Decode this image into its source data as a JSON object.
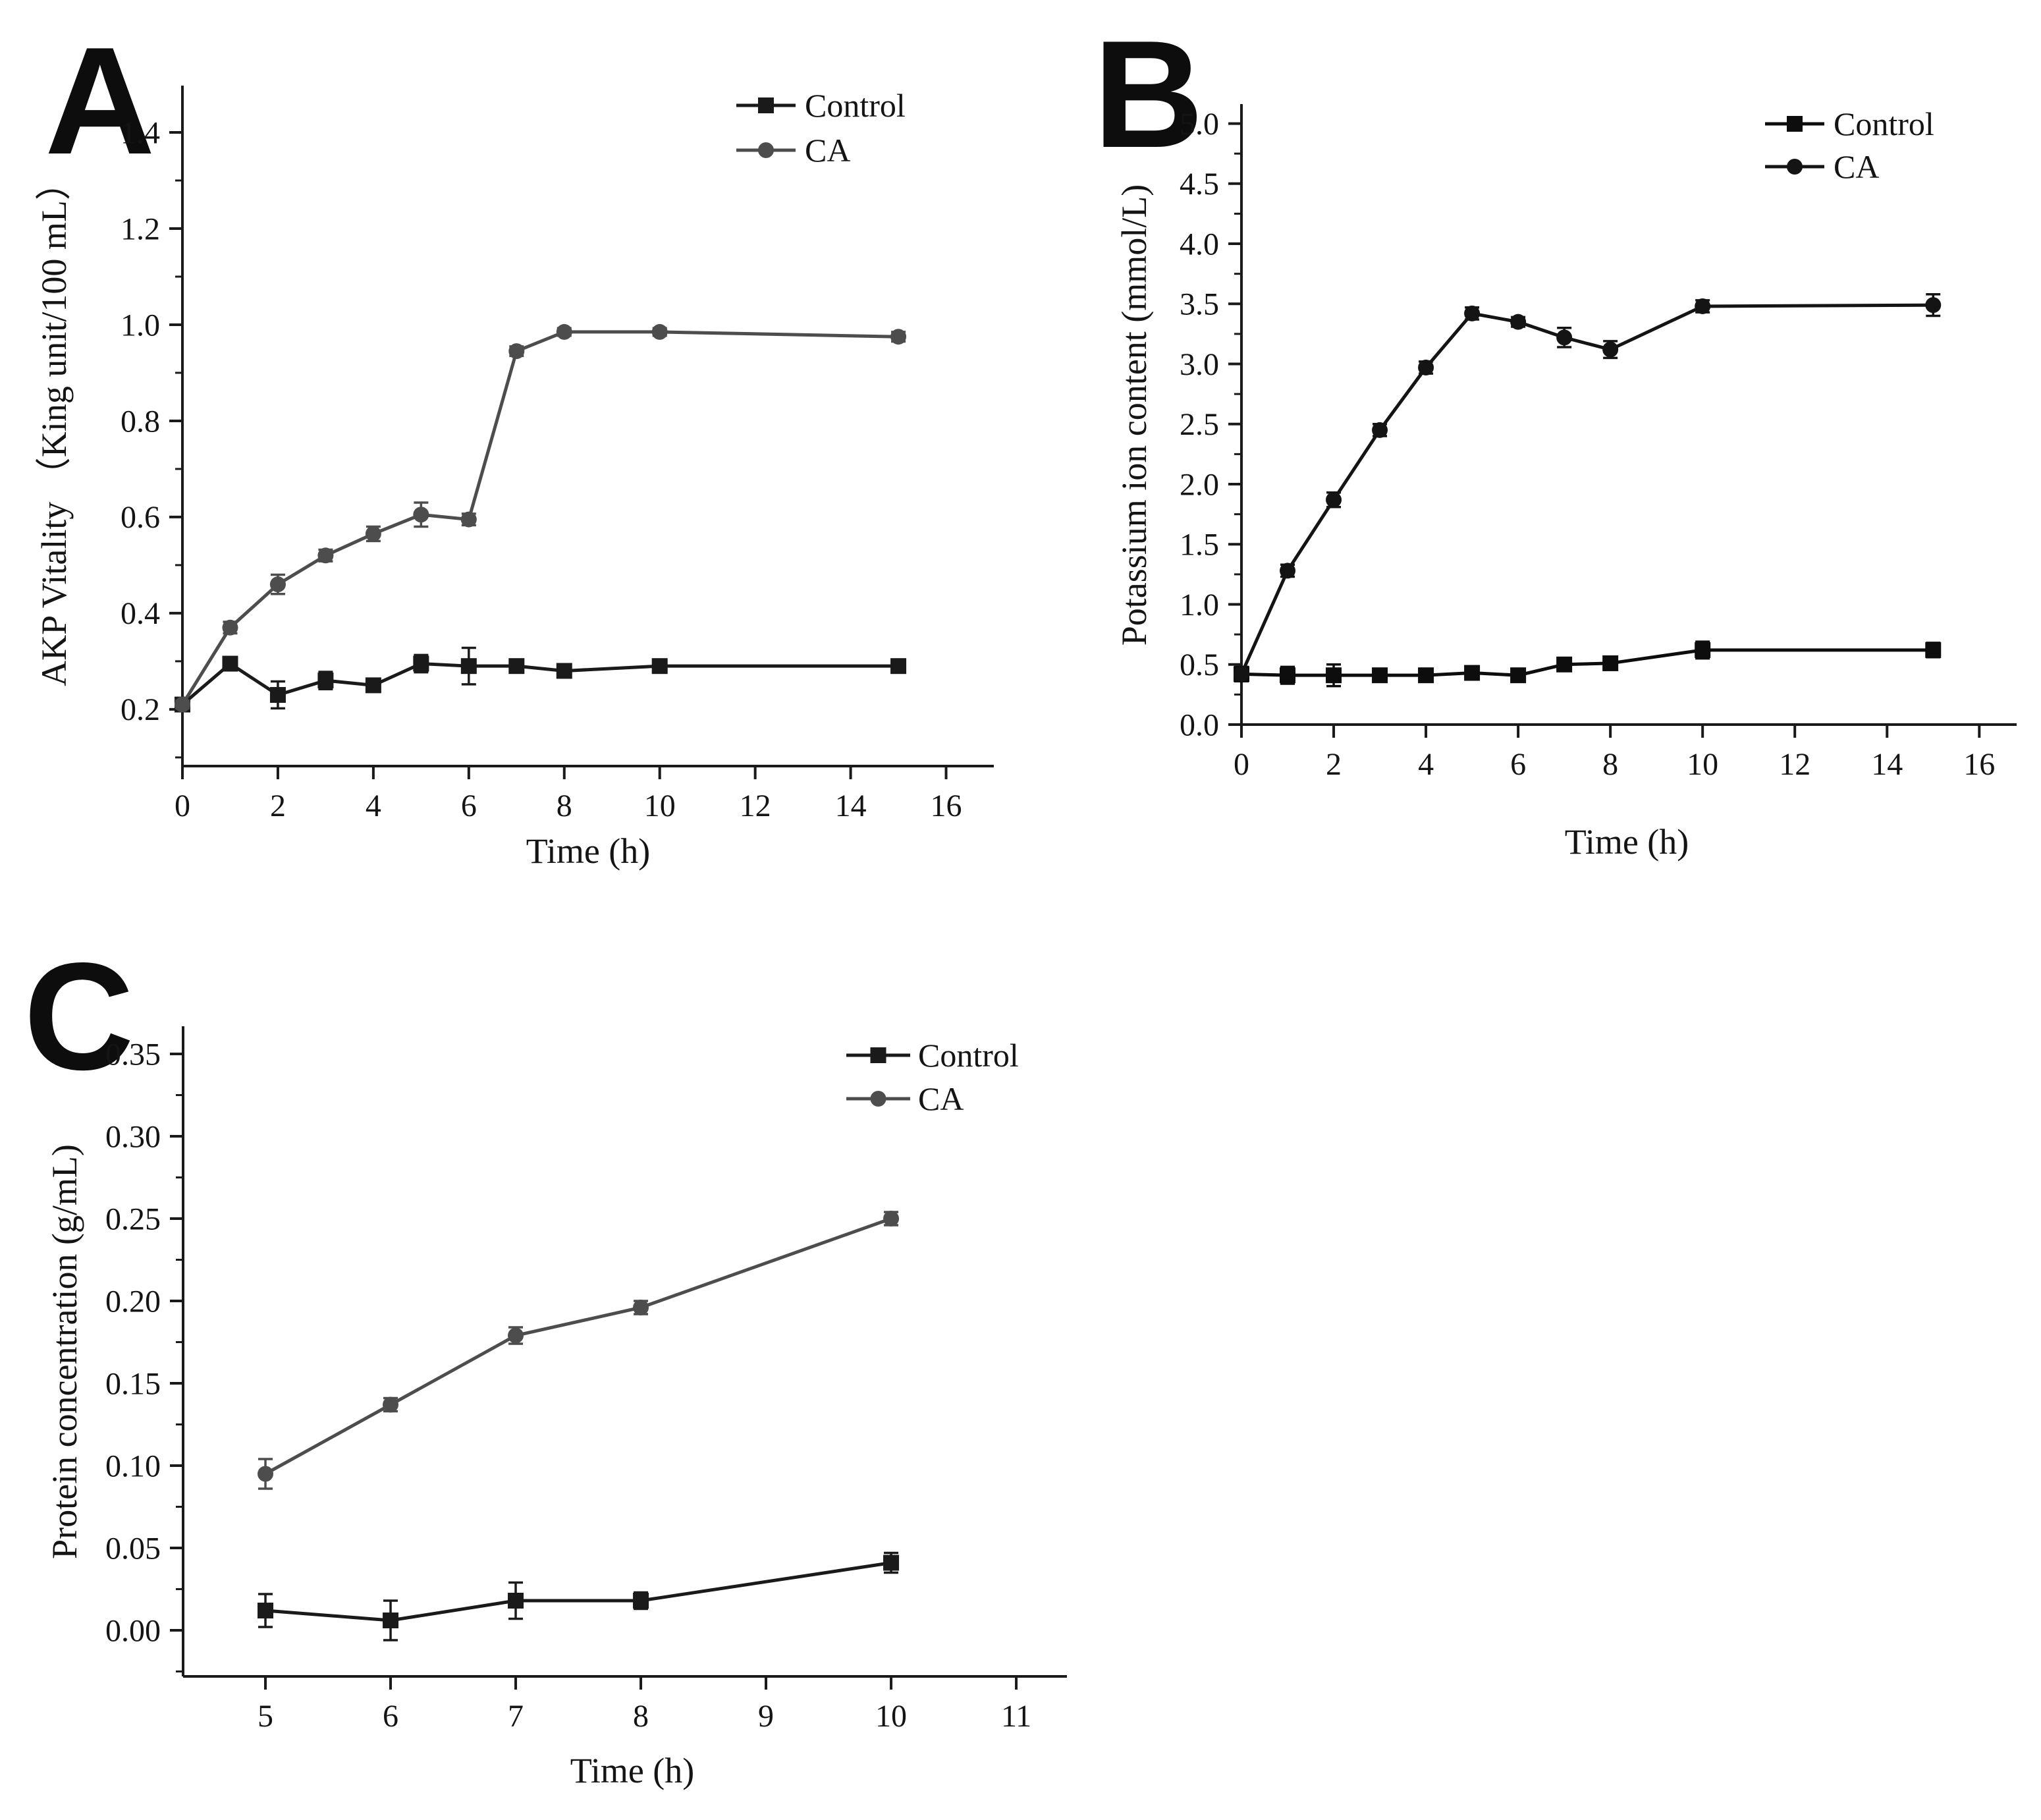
{
  "figure": {
    "background": "#ffffff",
    "text_color": "#141414",
    "axis_color": "#1a1a1a"
  },
  "chart_data": [
    {
      "id": "panel-a",
      "panel_label": "A",
      "type": "line",
      "title": "",
      "xlabel": "Time (h)",
      "ylabel": "AKP Vitality （King unit/100 mL）",
      "grid": false,
      "legend_position": "top-right",
      "xlim": [
        0,
        17.0
      ],
      "ylim": [
        0.082,
        1.4973
      ],
      "x_tick_values": [
        0,
        2,
        4,
        6,
        8,
        10,
        12,
        14,
        16
      ],
      "x_tick_labels": [
        "0",
        "2",
        "4",
        "6",
        "8",
        "10",
        "12",
        "14",
        "16"
      ],
      "y_tick_values": [
        0.2,
        0.4,
        0.6,
        0.8,
        1.0,
        1.2,
        1.4
      ],
      "y_tick_labels": [
        "0.2",
        "0.4",
        "0.6",
        "0.8",
        "1.0",
        "1.2",
        "1.4"
      ],
      "y_minor_step": 0.1,
      "x": [
        0,
        1,
        2,
        3,
        4,
        5,
        6,
        7,
        8,
        10,
        15
      ],
      "series": [
        {
          "name": "Control",
          "marker": "square",
          "color": "#1a1a1a",
          "values": [
            0.21,
            0.295,
            0.23,
            0.26,
            0.25,
            0.295,
            0.29,
            0.29,
            0.28,
            0.29,
            0.29
          ],
          "errors": [
            0.008,
            0.01,
            0.028,
            0.018,
            0.012,
            0.018,
            0.038,
            0.01,
            0.012,
            0.008,
            0.008
          ]
        },
        {
          "name": "CA",
          "marker": "circle",
          "color": "#4d4d4d",
          "values": [
            0.21,
            0.37,
            0.46,
            0.52,
            0.565,
            0.605,
            0.595,
            0.945,
            0.985,
            0.985,
            0.975
          ],
          "errors": [
            0.008,
            0.012,
            0.02,
            0.012,
            0.015,
            0.025,
            0.012,
            0.01,
            0.008,
            0.008,
            0.01
          ]
        }
      ]
    },
    {
      "id": "panel-b",
      "panel_label": "B",
      "type": "line",
      "title": "",
      "xlabel": "Time (h)",
      "ylabel": "Potassium ion content (mmol/L)",
      "grid": false,
      "legend_position": "top-right",
      "xlim": [
        0,
        16.81
      ],
      "ylim": [
        0,
        5.162
      ],
      "x_tick_values": [
        0,
        2,
        4,
        6,
        8,
        10,
        12,
        14,
        16
      ],
      "x_tick_labels": [
        "0",
        "2",
        "4",
        "6",
        "8",
        "10",
        "12",
        "14",
        "16"
      ],
      "y_tick_values": [
        0.0,
        0.5,
        1.0,
        1.5,
        2.0,
        2.5,
        3.0,
        3.5,
        4.0,
        4.5,
        5.0
      ],
      "y_tick_labels": [
        "0.0",
        "0.5",
        "1.0",
        "1.5",
        "2.0",
        "2.5",
        "3.0",
        "3.5",
        "4.0",
        "4.5",
        "5.0"
      ],
      "y_minor_step": 0.25,
      "x": [
        0,
        1,
        2,
        3,
        4,
        5,
        6,
        7,
        8,
        10,
        15
      ],
      "series": [
        {
          "name": "Control",
          "marker": "square",
          "color": "#0d0d0d",
          "values": [
            0.42,
            0.41,
            0.41,
            0.41,
            0.41,
            0.43,
            0.41,
            0.5,
            0.51,
            0.62,
            0.62
          ],
          "errors": [
            0.06,
            0.07,
            0.09,
            0.03,
            0.025,
            0.03,
            0.02,
            0.035,
            0.035,
            0.07,
            0.06
          ]
        },
        {
          "name": "CA",
          "marker": "circle",
          "color": "#141414",
          "values": [
            0.42,
            1.28,
            1.87,
            2.45,
            2.97,
            3.42,
            3.35,
            3.22,
            3.12,
            3.48,
            3.49
          ],
          "errors": [
            0.03,
            0.05,
            0.06,
            0.05,
            0.05,
            0.05,
            0.04,
            0.08,
            0.07,
            0.05,
            0.09
          ]
        }
      ]
    },
    {
      "id": "panel-c",
      "panel_label": "C",
      "type": "line",
      "title": "",
      "xlabel": "Time (h)",
      "ylabel": "Protein concentration (g/mL)",
      "grid": false,
      "legend_position": "top-right",
      "xlim": [
        4.342,
        11.405
      ],
      "ylim": [
        -0.028,
        0.3668
      ],
      "x_tick_values": [
        5,
        6,
        7,
        8,
        9,
        10,
        11
      ],
      "x_tick_labels": [
        "5",
        "6",
        "7",
        "8",
        "9",
        "10",
        "11"
      ],
      "y_tick_values": [
        0.0,
        0.05,
        0.1,
        0.15,
        0.2,
        0.25,
        0.3,
        0.35
      ],
      "y_tick_labels": [
        "0.00",
        "0.05",
        "0.10",
        "0.15",
        "0.20",
        "0.25",
        "0.30",
        "0.35"
      ],
      "y_minor_step": 0.025,
      "x": [
        5,
        6,
        7,
        8,
        10
      ],
      "series": [
        {
          "name": "Control",
          "marker": "square",
          "color": "#1a1a1a",
          "values": [
            0.012,
            0.006,
            0.018,
            0.018,
            0.041
          ],
          "errors": [
            0.01,
            0.012,
            0.011,
            0.005,
            0.006
          ]
        },
        {
          "name": "CA",
          "marker": "circle",
          "color": "#4d4d4d",
          "values": [
            0.095,
            0.137,
            0.179,
            0.196,
            0.25
          ],
          "errors": [
            0.009,
            0.004,
            0.005,
            0.004,
            0.004
          ]
        }
      ]
    }
  ]
}
